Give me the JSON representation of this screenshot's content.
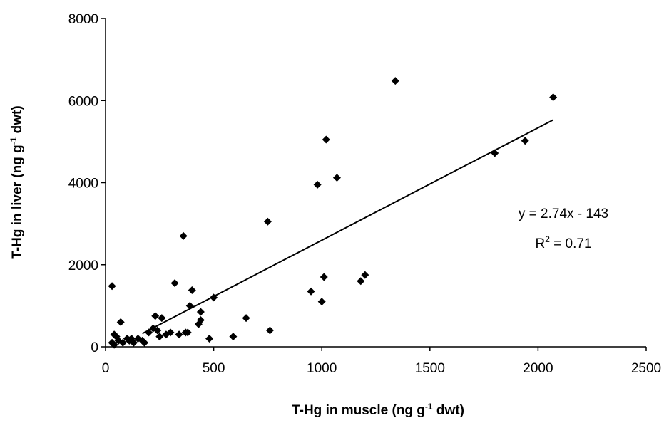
{
  "chart_data": {
    "type": "scatter",
    "x_label": [
      "T-Hg in muscle (ng g",
      "-1",
      " dwt)"
    ],
    "y_label": [
      "T-Hg in liver (ng g",
      "-1",
      " dwt)"
    ],
    "x": [
      30,
      40,
      50,
      30,
      40,
      60,
      70,
      80,
      100,
      110,
      120,
      130,
      150,
      170,
      180,
      200,
      220,
      230,
      240,
      250,
      260,
      280,
      300,
      320,
      340,
      360,
      370,
      380,
      390,
      400,
      430,
      440,
      440,
      480,
      500,
      590,
      650,
      750,
      760,
      950,
      980,
      1000,
      1010,
      1020,
      1070,
      1180,
      1200,
      1340,
      1800,
      1940,
      2070
    ],
    "values": [
      1480,
      300,
      250,
      100,
      50,
      150,
      600,
      100,
      200,
      150,
      200,
      100,
      200,
      150,
      100,
      350,
      450,
      750,
      400,
      250,
      700,
      300,
      350,
      1550,
      300,
      2700,
      350,
      350,
      1000,
      1380,
      550,
      650,
      850,
      200,
      1200,
      250,
      700,
      3050,
      400,
      1350,
      3950,
      1100,
      1700,
      5050,
      4120,
      1600,
      1750,
      6480,
      4720,
      5020,
      6080
    ],
    "color": "#000000",
    "trendline": {
      "slope": 2.74,
      "intercept": -143,
      "x_range": [
        170,
        2070
      ]
    },
    "annotations": [
      "y = 2.74x - 143",
      [
        "R",
        "2",
        " = 0.71"
      ]
    ],
    "xlim": [
      0,
      2500
    ],
    "ylim": [
      0,
      8000
    ],
    "xticks": [
      0,
      500,
      1000,
      1500,
      2000,
      2500
    ],
    "yticks": [
      0,
      2000,
      4000,
      6000,
      8000
    ],
    "grid": false
  }
}
